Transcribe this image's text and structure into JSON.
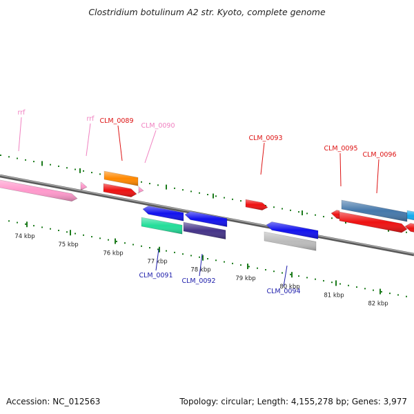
{
  "title": "Clostridium botulinum A2 str. Kyoto, complete genome",
  "footer": {
    "accession_label": "Accession:",
    "accession": "NC_012563",
    "topology_label": "Topology:",
    "topology": "circular",
    "length_label": "Length:",
    "length": "4,155,278 bp",
    "genes_label": "Genes:",
    "genes": "3,977"
  },
  "colors": {
    "tick": "#1a7a1a",
    "backbone": "#8a8a8a",
    "rna_label": "#f080c0",
    "forward_label": "#dd1111",
    "reverse_label": "#1a1aaa"
  },
  "axis_ticks": [
    {
      "label": "74 kbp"
    },
    {
      "label": "75 kbp"
    },
    {
      "label": "76 kbp"
    },
    {
      "label": "77 kbp"
    },
    {
      "label": "78 kbp"
    },
    {
      "label": "79 kbp"
    },
    {
      "label": "80 kbp"
    },
    {
      "label": "81 kbp"
    },
    {
      "label": "82 kbp"
    }
  ],
  "features": [
    {
      "name": "rrf",
      "strand": "forward",
      "color": "#ff99cc"
    },
    {
      "name": "rrf",
      "strand": "forward",
      "color": "#ff99cc"
    },
    {
      "name": "CLM_0089",
      "strand": "forward",
      "color": "#ee1111"
    },
    {
      "name": "",
      "strand": "forward",
      "color": "#ff8800"
    },
    {
      "name": "CLM_0090",
      "strand": "forward",
      "color": "#ff99cc"
    },
    {
      "name": "CLM_0091",
      "strand": "reverse",
      "color": "#1111ee"
    },
    {
      "name": "",
      "strand": "reverse",
      "color": "#22dd99"
    },
    {
      "name": "CLM_0092",
      "strand": "reverse",
      "color": "#1111ee"
    },
    {
      "name": "",
      "strand": "reverse",
      "color": "#443388"
    },
    {
      "name": "CLM_0093",
      "strand": "forward",
      "color": "#ee1111"
    },
    {
      "name": "CLM_0094",
      "strand": "reverse",
      "color": "#1111ee"
    },
    {
      "name": "",
      "strand": "reverse",
      "color": "#bbbbbb"
    },
    {
      "name": "CLM_0095",
      "strand": "forward",
      "color": "#ee1111"
    },
    {
      "name": "",
      "strand": "forward",
      "color": "#4477aa"
    },
    {
      "name": "CLM_0096",
      "strand": "forward",
      "color": "#ee1111"
    },
    {
      "name": "",
      "strand": "forward",
      "color": "#11aaee"
    }
  ]
}
